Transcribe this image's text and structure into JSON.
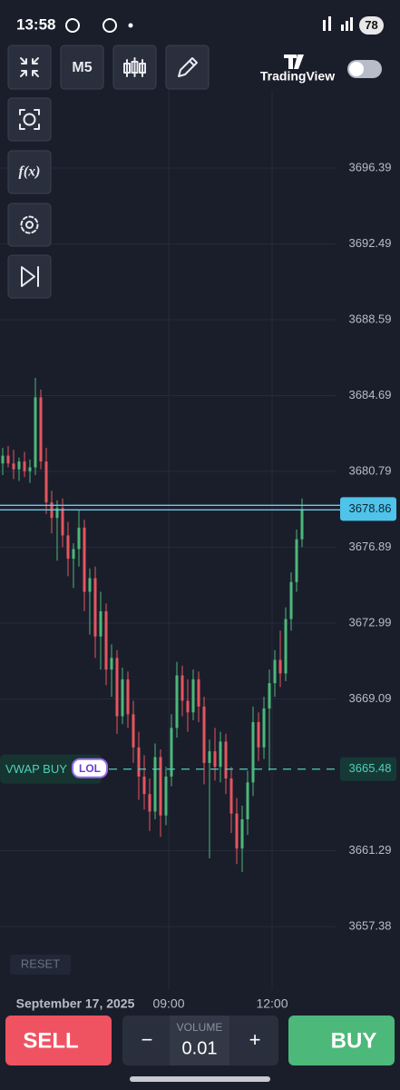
{
  "status_bar": {
    "time": "13:58",
    "battery": "78"
  },
  "toolbar": {
    "timeframe": "M5",
    "brand": "TradingView"
  },
  "chart_data": {
    "type": "candlestick",
    "date_label": "September 17, 2025",
    "reset": "RESET",
    "up_color": "#4cb87a",
    "down_color": "#e5555f",
    "grid": true,
    "ylim": [
      3654.12,
      3700.36
    ],
    "yticks": [
      3696.39,
      3692.49,
      3688.59,
      3684.69,
      3680.79,
      3676.89,
      3672.99,
      3669.09,
      3661.29,
      3657.38
    ],
    "xlim": [
      0,
      73.5
    ],
    "xticks": [
      {
        "value": 31,
        "label": "09:00"
      },
      {
        "value": 50,
        "label": "12:00"
      }
    ],
    "current_price": 3678.86,
    "vwap": {
      "label": "VWAP BUY",
      "badge": "LOL",
      "value": 3665.48,
      "color": "#4dd0b8"
    },
    "open": [
      3681.2,
      3681.6,
      3681.2,
      3680.9,
      3681.3,
      3680.8,
      3681.0,
      3684.6,
      3681.3,
      3679.2,
      3678.4,
      3678.9,
      3677.5,
      3676.3,
      3676.8,
      3677.9,
      3674.6,
      3675.3,
      3672.3,
      3673.6,
      3670.6,
      3671.2,
      3668.2,
      3670.1,
      3668.3,
      3666.6,
      3665.1,
      3664.2,
      3663.3,
      3666.1,
      3663.1,
      3665.1,
      3667.6,
      3670.3,
      3669.0,
      3668.4,
      3670.1,
      3668.7,
      3665.8,
      3666.4,
      3665.6,
      3666.9,
      3665.0,
      3663.2,
      3661.4,
      3662.9,
      3664.8,
      3667.9,
      3666.6,
      3668.6,
      3669.9,
      3671.1,
      3670.4,
      3673.2,
      3675.1,
      3677.3
    ],
    "high": [
      3682.0,
      3682.1,
      3681.9,
      3681.5,
      3681.8,
      3681.4,
      3685.6,
      3685.0,
      3682.0,
      3679.8,
      3679.3,
      3679.4,
      3678.2,
      3677.1,
      3678.8,
      3678.3,
      3675.8,
      3675.9,
      3674.6,
      3674.0,
      3671.9,
      3671.6,
      3670.7,
      3670.5,
      3669.0,
      3667.4,
      3666.2,
      3665.0,
      3666.8,
      3666.5,
      3665.6,
      3668.3,
      3671.0,
      3670.8,
      3670.1,
      3670.6,
      3670.5,
      3669.2,
      3667.0,
      3667.6,
      3667.4,
      3667.3,
      3665.6,
      3664.0,
      3663.6,
      3665.4,
      3668.7,
      3668.4,
      3669.2,
      3670.6,
      3671.6,
      3672.6,
      3673.8,
      3675.6,
      3677.8,
      3679.4
    ],
    "low": [
      3680.6,
      3681.0,
      3680.4,
      3680.3,
      3680.5,
      3680.2,
      3680.6,
      3680.9,
      3678.6,
      3677.6,
      3676.2,
      3676.9,
      3675.4,
      3674.8,
      3675.9,
      3673.6,
      3672.4,
      3671.2,
      3670.6,
      3669.8,
      3669.2,
      3667.3,
      3667.8,
      3667.6,
      3665.8,
      3663.9,
      3663.4,
      3662.3,
      3662.9,
      3662.0,
      3662.6,
      3664.6,
      3667.1,
      3668.2,
      3667.4,
      3668.0,
      3667.9,
      3664.7,
      3660.9,
      3664.9,
      3664.8,
      3664.2,
      3662.2,
      3660.6,
      3660.2,
      3662.1,
      3664.1,
      3665.9,
      3666.0,
      3665.4,
      3669.2,
      3669.7,
      3670.0,
      3672.6,
      3674.6,
      3676.9
    ],
    "close": [
      3681.6,
      3681.2,
      3680.9,
      3681.3,
      3680.8,
      3681.0,
      3684.6,
      3681.3,
      3679.2,
      3678.4,
      3678.9,
      3677.5,
      3676.3,
      3676.8,
      3677.9,
      3674.6,
      3675.3,
      3672.3,
      3673.6,
      3670.6,
      3671.2,
      3668.2,
      3670.1,
      3668.3,
      3666.6,
      3665.1,
      3664.2,
      3663.3,
      3666.1,
      3663.1,
      3665.1,
      3667.6,
      3670.3,
      3669.0,
      3668.4,
      3670.1,
      3668.7,
      3665.8,
      3666.4,
      3665.6,
      3666.9,
      3665.0,
      3663.2,
      3661.4,
      3662.9,
      3664.8,
      3667.9,
      3666.6,
      3668.6,
      3669.9,
      3671.1,
      3670.4,
      3673.2,
      3675.1,
      3677.3,
      3678.86
    ]
  },
  "order_bar": {
    "sell": "SELL",
    "buy": "BUY",
    "minus": "−",
    "plus": "+",
    "volume_label": "VOLUME",
    "volume": 0.01
  }
}
